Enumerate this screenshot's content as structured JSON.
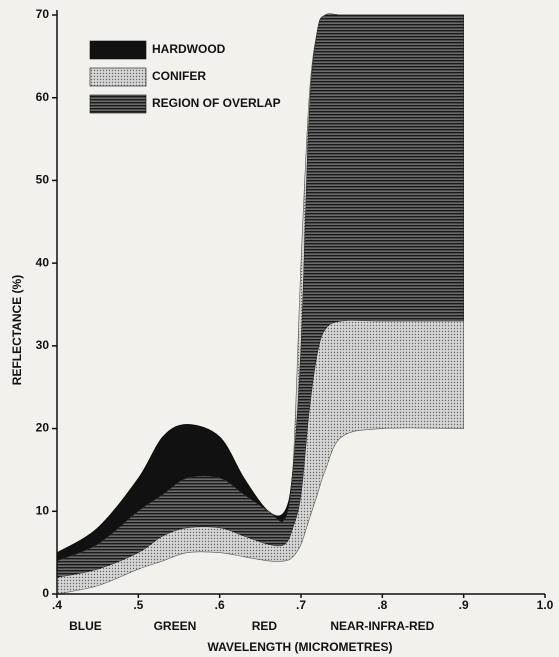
{
  "chart_data": {
    "type": "band",
    "xlabel": "WAVELENGTH (MICROMETRES)",
    "ylabel": "REFLECTANCE (%)",
    "xlim": [
      0.4,
      1.0
    ],
    "ylim": [
      0,
      70
    ],
    "xticks": [
      {
        "value": 0.4,
        "label": ".4"
      },
      {
        "value": 0.5,
        "label": ".5"
      },
      {
        "value": 0.6,
        "label": ".6"
      },
      {
        "value": 0.7,
        "label": ".7"
      },
      {
        "value": 0.8,
        "label": ".8"
      },
      {
        "value": 0.9,
        "label": ".9"
      },
      {
        "value": 1.0,
        "label": "1.0"
      }
    ],
    "yticks": [
      0,
      10,
      20,
      30,
      40,
      50,
      60,
      70
    ],
    "regions": [
      {
        "label": "BLUE",
        "x": 0.435
      },
      {
        "label": "GREEN",
        "x": 0.545
      },
      {
        "label": "RED",
        "x": 0.655
      },
      {
        "label": "NEAR-INFRA-RED",
        "x": 0.8
      }
    ],
    "x": [
      0.4,
      0.45,
      0.5,
      0.53,
      0.56,
      0.6,
      0.63,
      0.66,
      0.68,
      0.69,
      0.7,
      0.71,
      0.72,
      0.73,
      0.75,
      0.8,
      0.9
    ],
    "series": [
      {
        "name": "HARDWOOD",
        "color": "#111111",
        "upper": [
          5,
          8,
          14,
          19,
          20.5,
          19,
          14,
          10,
          10,
          15,
          30,
          58,
          68,
          70,
          70,
          70,
          70
        ],
        "lower": [
          2,
          3,
          5,
          7,
          8,
          8,
          7,
          6,
          6,
          8,
          12,
          22,
          29,
          32,
          33,
          33,
          33
        ]
      },
      {
        "name": "CONIFER",
        "color": "#bdbdbd",
        "upper": [
          4,
          6,
          10,
          12,
          14,
          14,
          12,
          10,
          9,
          15,
          40,
          60,
          68,
          70,
          70,
          70,
          70
        ],
        "lower": [
          0,
          1,
          3,
          4,
          5,
          5,
          4.5,
          4,
          4,
          4.5,
          6,
          9,
          12,
          15,
          19,
          20,
          20
        ]
      }
    ],
    "overlap": {
      "name": "REGION OF OVERLAP",
      "color": "#555555"
    }
  }
}
